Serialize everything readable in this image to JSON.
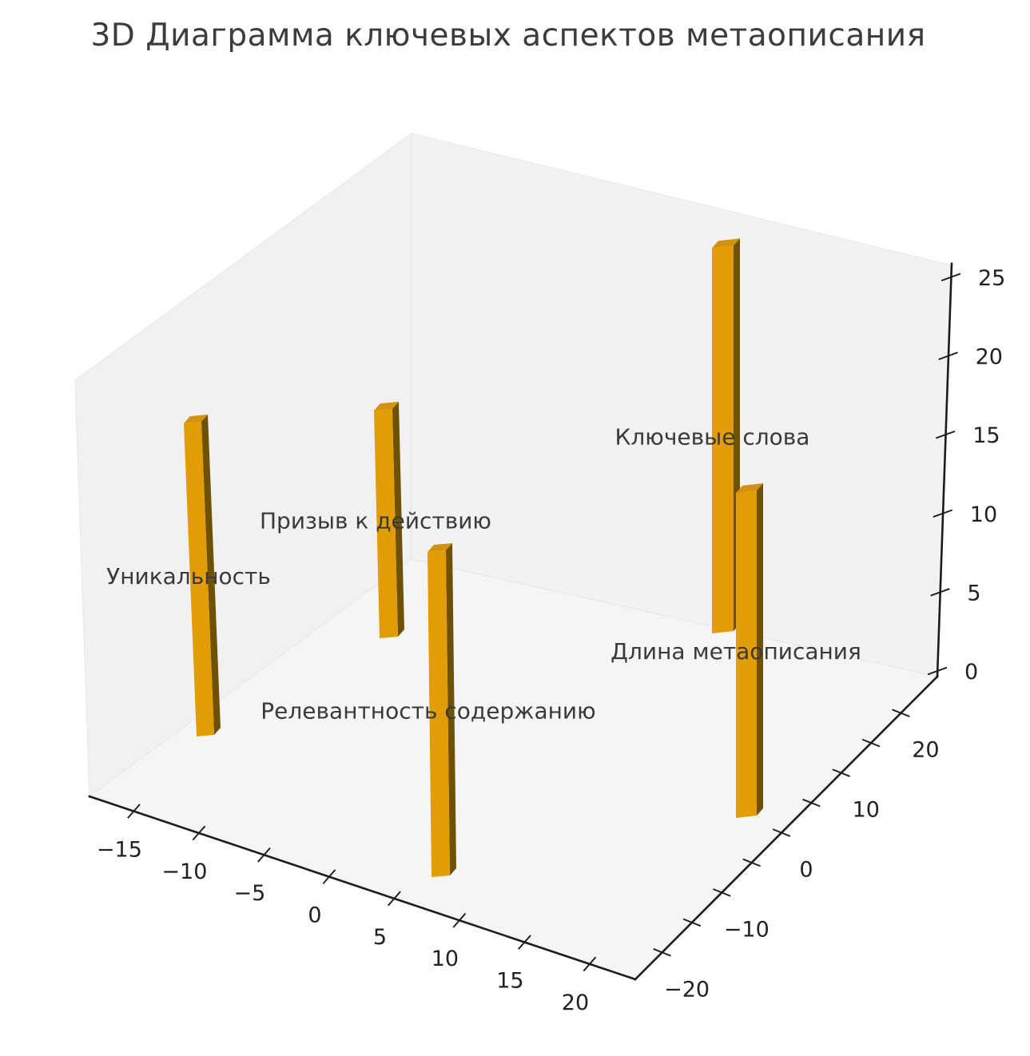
{
  "title": "3D Диаграмма ключевых аспектов метаописания",
  "chart_data": {
    "type": "bar",
    "subtype": "3d-bar",
    "title": "3D Диаграмма ключевых аспектов метаописания",
    "grid": false,
    "legend": false,
    "bar_color_name": "orange",
    "bars": [
      {
        "label": "Ключевые слова",
        "value": 25,
        "x": 6,
        "y": 23
      },
      {
        "label": "Призыв к действию",
        "value": 15,
        "x": -14,
        "y": 9
      },
      {
        "label": "Уникальность",
        "value": 20,
        "x": -15,
        "y": -17
      },
      {
        "label": "Длина метаописания",
        "value": 20,
        "x": 20,
        "y": 0
      },
      {
        "label": "Релевантность содержанию",
        "value": 20,
        "x": 8,
        "y": -24
      }
    ],
    "x_axis": {
      "tick_labels": [
        -15,
        -10,
        -5,
        0,
        5,
        10,
        15,
        20
      ]
    },
    "y_axis": {
      "tick_labels": [
        -20,
        -10,
        0,
        10,
        20
      ],
      "tick_marks": [
        -20,
        -15,
        -10,
        -5,
        0,
        5,
        10,
        15,
        20
      ]
    },
    "z_axis": {
      "tick_labels": [
        0,
        5,
        10,
        15,
        20,
        25
      ],
      "range": [
        0,
        25
      ]
    }
  },
  "colors": {
    "background": "#ffffff",
    "title_text": "#3c3c3c",
    "bar_label_text": "#3a3a3a",
    "tick_label_text": "#212121",
    "axis_line": "#1c1c1c",
    "bar_front": "#e29d04",
    "bar_side": "#6e5103",
    "bar_top": "#d39110",
    "pane_left_wall": "#f1f1f2",
    "pane_right_wall": "#f2f2f3",
    "pane_floor": "#f5f5f6",
    "pane_edge": "#e7e7e9"
  }
}
